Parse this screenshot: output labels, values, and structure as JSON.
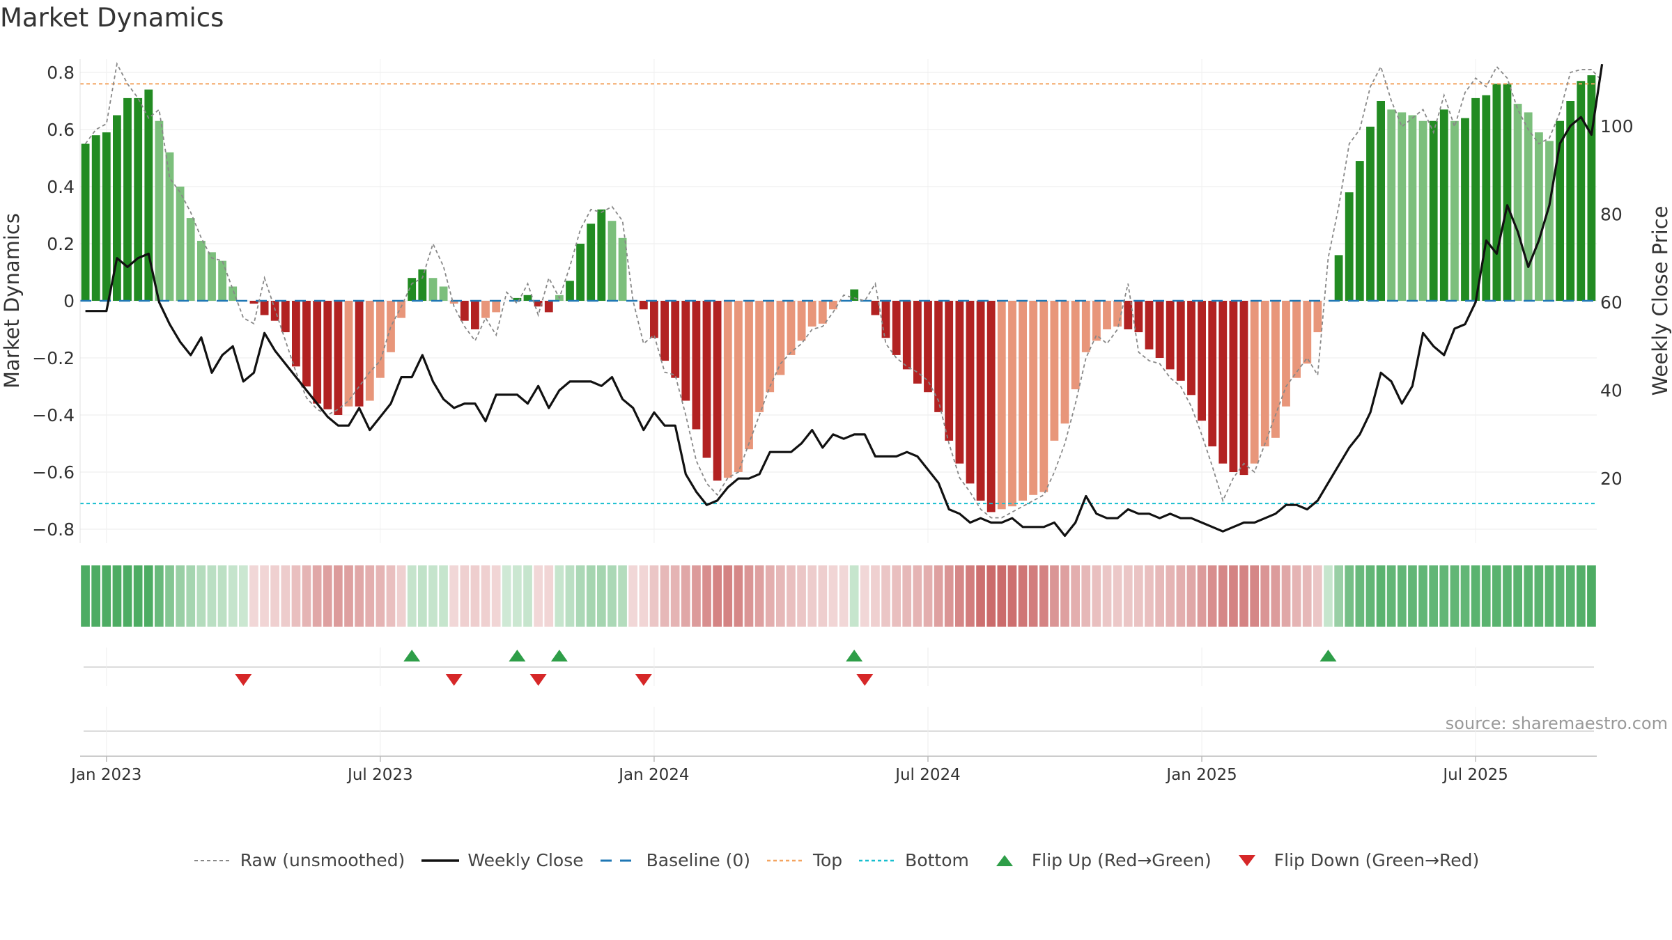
{
  "title": "Market Dynamics",
  "source": "source: sharemaestro.com",
  "colors": {
    "strong_green": "#228B22",
    "light_green": "#7CBF7C",
    "strong_red": "#B22222",
    "light_red": "#E8967A",
    "baseline": "#1f77b4",
    "top": "#F4A460",
    "bottom": "#17BECF",
    "flip_up": "#2E9E48",
    "flip_down": "#D62728",
    "close_line": "#111111",
    "raw_line": "#888888"
  },
  "legend": [
    {
      "label": "Raw (unsmoothed)",
      "key": "raw"
    },
    {
      "label": "Weekly Close",
      "key": "close"
    },
    {
      "label": "Baseline (0)",
      "key": "baseline"
    },
    {
      "label": "Top",
      "key": "top"
    },
    {
      "label": "Bottom",
      "key": "bottom"
    },
    {
      "label": "Flip Up (Red→Green)",
      "key": "flip_up"
    },
    {
      "label": "Flip Down (Green→Red)",
      "key": "flip_down"
    }
  ],
  "chart_data": {
    "type": "bar",
    "title": "Market Dynamics",
    "ylabel": "Market Dynamics",
    "y2label": "Weekly Close Price",
    "ylim": [
      -0.9,
      0.85
    ],
    "y2lim": [
      9,
      115
    ],
    "yticks": [
      {
        "v": 0.8,
        "label": "0.8"
      },
      {
        "v": 0.6,
        "label": "0.6"
      },
      {
        "v": 0.4,
        "label": "0.4"
      },
      {
        "v": 0.2,
        "label": "0.2"
      },
      {
        "v": 0,
        "label": "0"
      },
      {
        "v": -0.2,
        "label": "−0.2"
      },
      {
        "v": -0.4,
        "label": "−0.4"
      },
      {
        "v": -0.6,
        "label": "−0.6"
      },
      {
        "v": -0.8,
        "label": "−0.8"
      }
    ],
    "y2ticks": [
      {
        "v": 100,
        "label": "100"
      },
      {
        "v": 80,
        "label": "80"
      },
      {
        "v": 60,
        "label": "60"
      },
      {
        "v": 40,
        "label": "40"
      },
      {
        "v": 20,
        "label": "20"
      }
    ],
    "xticks": [
      {
        "week": 2,
        "label": "Jan 2023"
      },
      {
        "week": 28,
        "label": "Jul 2023"
      },
      {
        "week": 54,
        "label": "Jan 2024"
      },
      {
        "week": 80,
        "label": "Jul 2024"
      },
      {
        "week": 106,
        "label": "Jan 2025"
      },
      {
        "week": 132,
        "label": "Jul 2025"
      }
    ],
    "top_level": 0.76,
    "bottom_level": -0.71,
    "baseline": 0,
    "grid": true,
    "legend_position": "bottom",
    "dynamics": [
      0.55,
      0.58,
      0.59,
      0.65,
      0.71,
      0.71,
      0.74,
      0.63,
      0.52,
      0.4,
      0.29,
      0.21,
      0.17,
      0.14,
      0.05,
      0.0,
      -0.01,
      -0.05,
      -0.07,
      -0.11,
      -0.23,
      -0.3,
      -0.36,
      -0.38,
      -0.4,
      -0.37,
      -0.37,
      -0.35,
      -0.27,
      -0.18,
      -0.06,
      0.08,
      0.11,
      0.08,
      0.05,
      -0.01,
      -0.07,
      -0.1,
      -0.06,
      -0.04,
      0.0,
      0.01,
      0.02,
      -0.02,
      -0.04,
      0.02,
      0.07,
      0.2,
      0.27,
      0.32,
      0.28,
      0.22,
      0.0,
      -0.03,
      -0.13,
      -0.21,
      -0.27,
      -0.35,
      -0.45,
      -0.55,
      -0.63,
      -0.62,
      -0.6,
      -0.52,
      -0.39,
      -0.32,
      -0.26,
      -0.19,
      -0.14,
      -0.09,
      -0.08,
      -0.03,
      0.0,
      0.04,
      0.0,
      -0.05,
      -0.13,
      -0.19,
      -0.24,
      -0.29,
      -0.32,
      -0.39,
      -0.49,
      -0.57,
      -0.64,
      -0.7,
      -0.74,
      -0.73,
      -0.72,
      -0.7,
      -0.68,
      -0.67,
      -0.49,
      -0.43,
      -0.31,
      -0.18,
      -0.14,
      -0.1,
      -0.09,
      -0.1,
      -0.11,
      -0.17,
      -0.2,
      -0.24,
      -0.28,
      -0.33,
      -0.42,
      -0.51,
      -0.57,
      -0.6,
      -0.61,
      -0.57,
      -0.51,
      -0.48,
      -0.37,
      -0.27,
      -0.22,
      -0.11,
      0.0,
      0.16,
      0.38,
      0.49,
      0.61,
      0.7,
      0.67,
      0.66,
      0.65,
      0.63,
      0.63,
      0.67,
      0.63,
      0.64,
      0.71,
      0.72,
      0.76,
      0.76,
      0.69,
      0.66,
      0.59,
      0.56,
      0.63,
      0.7,
      0.77,
      0.79
    ],
    "weekly_close": [
      58,
      58,
      58,
      70,
      68,
      70,
      71,
      60,
      55,
      51,
      48,
      52,
      44,
      48,
      50,
      42,
      44,
      53,
      49,
      46,
      43,
      40,
      37,
      34,
      32,
      32,
      36,
      31,
      34,
      37,
      43,
      43,
      48,
      42,
      38,
      36,
      37,
      37,
      33,
      39,
      39,
      39,
      37,
      41,
      36,
      40,
      42,
      42,
      42,
      41,
      43,
      38,
      36,
      31,
      35,
      32,
      32,
      21,
      17,
      14,
      15,
      18,
      20,
      20,
      21,
      26,
      26,
      26,
      28,
      31,
      27,
      30,
      29,
      30,
      30,
      25,
      25,
      25,
      26,
      25,
      22,
      19,
      13,
      12,
      10,
      11,
      10,
      10,
      11,
      9,
      9,
      9,
      10,
      7,
      10,
      16,
      12,
      11,
      11,
      13,
      12,
      12,
      11,
      12,
      11,
      11,
      10,
      9,
      8,
      9,
      10,
      10,
      11,
      12,
      14,
      14,
      13,
      15,
      19,
      23,
      27,
      30,
      35,
      44,
      42,
      37,
      41,
      53,
      50,
      48,
      54,
      55,
      60,
      74,
      71,
      82,
      76,
      68,
      74,
      82,
      96,
      100,
      102,
      98,
      114
    ],
    "raw": [
      0.55,
      0.6,
      0.62,
      0.83,
      0.76,
      0.71,
      0.64,
      0.67,
      0.43,
      0.38,
      0.31,
      0.22,
      0.15,
      0.14,
      0.04,
      -0.06,
      -0.08,
      0.08,
      -0.03,
      -0.14,
      -0.25,
      -0.34,
      -0.38,
      -0.4,
      -0.38,
      -0.35,
      -0.3,
      -0.25,
      -0.21,
      -0.09,
      -0.02,
      0.06,
      0.08,
      0.2,
      0.12,
      -0.02,
      -0.09,
      -0.14,
      -0.06,
      -0.12,
      0.03,
      -0.01,
      0.06,
      -0.05,
      0.08,
      0.01,
      0.12,
      0.25,
      0.32,
      0.31,
      0.33,
      0.28,
      0.0,
      -0.15,
      -0.12,
      -0.25,
      -0.26,
      -0.4,
      -0.56,
      -0.64,
      -0.68,
      -0.62,
      -0.6,
      -0.5,
      -0.4,
      -0.3,
      -0.22,
      -0.18,
      -0.15,
      -0.1,
      -0.09,
      -0.04,
      0.02,
      0.01,
      0.0,
      0.06,
      -0.15,
      -0.2,
      -0.23,
      -0.25,
      -0.28,
      -0.35,
      -0.5,
      -0.62,
      -0.67,
      -0.73,
      -0.76,
      -0.76,
      -0.74,
      -0.72,
      -0.7,
      -0.68,
      -0.6,
      -0.5,
      -0.36,
      -0.2,
      -0.12,
      -0.15,
      -0.1,
      0.06,
      -0.18,
      -0.21,
      -0.22,
      -0.27,
      -0.3,
      -0.37,
      -0.47,
      -0.58,
      -0.7,
      -0.62,
      -0.57,
      -0.6,
      -0.5,
      -0.4,
      -0.3,
      -0.25,
      -0.2,
      -0.26,
      0.15,
      0.33,
      0.55,
      0.6,
      0.75,
      0.82,
      0.7,
      0.61,
      0.64,
      0.67,
      0.59,
      0.72,
      0.61,
      0.73,
      0.78,
      0.75,
      0.82,
      0.78,
      0.67,
      0.6,
      0.55,
      0.57,
      0.66,
      0.8,
      0.81,
      0.81,
      0.77
    ],
    "regime_strip": [
      "1",
      "1",
      "1",
      "1",
      "1",
      "1",
      "1",
      "0.8",
      "0.6",
      "0.45",
      "0.35",
      "0.25",
      "0.2",
      "0.18",
      "0.12",
      "0.08",
      "-0.05",
      "-0.08",
      "-0.1",
      "-0.15",
      "-0.25",
      "-0.35",
      "-0.45",
      "-0.5",
      "-0.55",
      "-0.5",
      "-0.45",
      "-0.4",
      "-0.35",
      "-0.25",
      "-0.1",
      "0.12",
      "0.15",
      "0.12",
      "0.1",
      "-0.05",
      "-0.1",
      "-0.12",
      "-0.1",
      "-0.08",
      "0.05",
      "0.08",
      "0.1",
      "-0.05",
      "-0.08",
      "0.1",
      "0.2",
      "0.3",
      "0.35",
      "0.35",
      "0.3",
      "0.25",
      "-0.05",
      "-0.08",
      "-0.2",
      "-0.3",
      "-0.35",
      "-0.45",
      "-0.55",
      "-0.65",
      "-0.75",
      "-0.75",
      "-0.7",
      "-0.6",
      "-0.5",
      "-0.4",
      "-0.3",
      "-0.25",
      "-0.2",
      "-0.15",
      "-0.12",
      "-0.08",
      "-0.05",
      "0.1",
      "-0.05",
      "-0.1",
      "-0.2",
      "-0.25",
      "-0.3",
      "-0.35",
      "-0.4",
      "-0.5",
      "-0.6",
      "-0.7",
      "-0.8",
      "-0.9",
      "-0.95",
      "-0.95",
      "-0.9",
      "-0.85",
      "-0.8",
      "-0.75",
      "-0.6",
      "-0.5",
      "-0.4",
      "-0.3",
      "-0.25",
      "-0.2",
      "-0.18",
      "-0.2",
      "-0.22",
      "-0.25",
      "-0.3",
      "-0.35",
      "-0.4",
      "-0.45",
      "-0.55",
      "-0.65",
      "-0.7",
      "-0.75",
      "-0.75",
      "-0.7",
      "-0.6",
      "-0.55",
      "-0.45",
      "-0.35",
      "-0.3",
      "-0.2",
      "0.1",
      "0.45",
      "0.7",
      "0.8",
      "0.85",
      "0.9",
      "0.85",
      "0.85",
      "0.85",
      "0.85",
      "0.85",
      "0.85",
      "0.85",
      "0.85",
      "0.9",
      "0.9",
      "0.9",
      "0.9",
      "0.9",
      "0.9",
      "0.9",
      "0.9",
      "0.9",
      "0.9",
      "0.95",
      "1"
    ],
    "flips_up": [
      31,
      41,
      45,
      73,
      118
    ],
    "flips_down": [
      15,
      35,
      43,
      53,
      74
    ]
  }
}
